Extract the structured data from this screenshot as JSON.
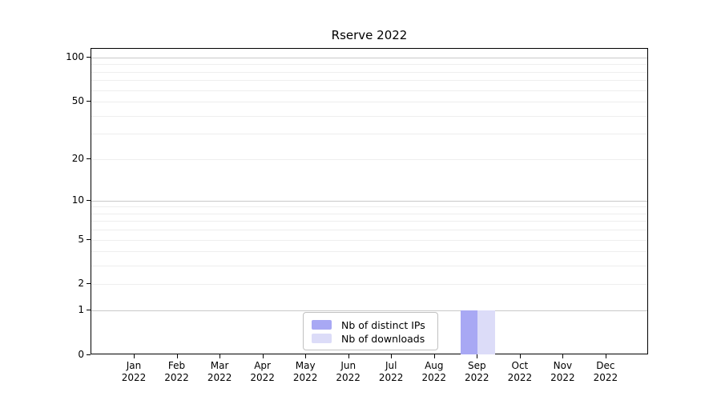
{
  "chart_data": {
    "type": "bar",
    "title": "Rserve 2022",
    "xlabel": "",
    "ylabel": "",
    "yscale": "log10(1+y)",
    "ylim": [
      0,
      115
    ],
    "grid": true,
    "legend_position": "bottom-center-inside",
    "background_color": "#ffffff",
    "axis_color": "#000000",
    "grid_minor_color": "#eeeeee",
    "grid_major_color": "#c9c9c9",
    "legend_border_color": "#c0c0c0",
    "months": [
      "Jan",
      "Feb",
      "Mar",
      "Apr",
      "May",
      "Jun",
      "Jul",
      "Aug",
      "Sep",
      "Oct",
      "Nov",
      "Dec"
    ],
    "year": "2022",
    "categories": [
      "Jan 2022",
      "Feb 2022",
      "Mar 2022",
      "Apr 2022",
      "May 2022",
      "Jun 2022",
      "Jul 2022",
      "Aug 2022",
      "Sep 2022",
      "Oct 2022",
      "Nov 2022",
      "Dec 2022"
    ],
    "yticks": [
      0,
      1,
      2,
      5,
      10,
      20,
      50,
      100
    ],
    "major_gridlines": [
      1,
      10,
      100
    ],
    "minor_gridlines": [
      2,
      3,
      4,
      5,
      6,
      7,
      8,
      9,
      20,
      30,
      40,
      50,
      60,
      70,
      80,
      90
    ],
    "series": [
      {
        "name": "Nb of distinct IPs",
        "color": "#a8a8f4",
        "values": [
          0,
          0,
          0,
          0,
          0,
          0,
          0,
          0,
          1,
          0,
          0,
          0
        ]
      },
      {
        "name": "Nb of downloads",
        "color": "#dcdcf8",
        "values": [
          0,
          0,
          0,
          0,
          0,
          0,
          0,
          0,
          1,
          0,
          0,
          0
        ]
      }
    ]
  }
}
